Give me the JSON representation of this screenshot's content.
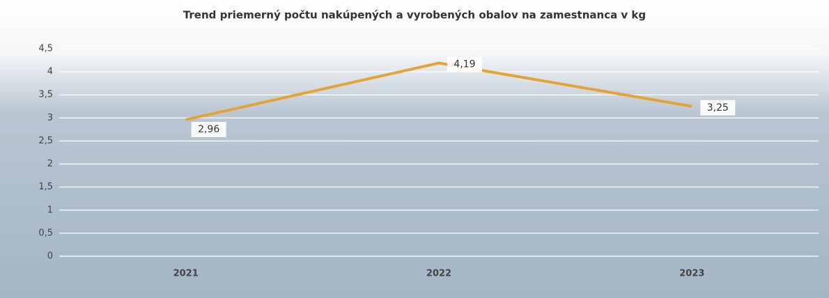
{
  "chart_data": {
    "type": "line",
    "title": "Trend priemerný počtu  nakúpených a vyrobených obalov na zamestnanca v kg",
    "categories": [
      "2021",
      "2022",
      "2023"
    ],
    "series": [
      {
        "name": "Trend",
        "color": "#e3a336",
        "values": [
          2.96,
          4.19,
          3.25
        ],
        "value_labels": [
          "2,96",
          "4,19",
          "3,25"
        ]
      }
    ],
    "ylim": [
      0,
      4.5
    ],
    "yticks": [
      0,
      {
        "value": 0.5,
        "label": "0,5"
      },
      1,
      {
        "value": 1.5,
        "label": "1,5"
      },
      2,
      {
        "value": 2.5,
        "label": "2,5"
      },
      3,
      {
        "value": 3.5,
        "label": "3,5"
      },
      4,
      {
        "value": 4.5,
        "label": "4,5"
      }
    ],
    "grid": true
  }
}
